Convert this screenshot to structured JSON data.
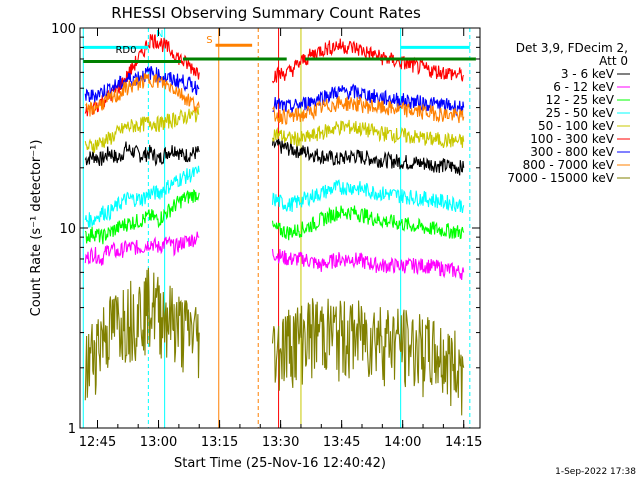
{
  "chart_data": {
    "type": "line",
    "title": "RHESSI Observing Summary Count Rates",
    "xlabel": "Start Time (25-Nov-16 12:40:42)",
    "ylabel": "Count Rate (s⁻¹ detector⁻¹)",
    "yscale": "log",
    "xlim_min": [
      40.7,
      139
    ],
    "ylim": [
      1,
      100
    ],
    "x_ticks": [
      {
        "value": 45,
        "label": "12:45"
      },
      {
        "value": 60,
        "label": "13:00"
      },
      {
        "value": 75,
        "label": "13:15"
      },
      {
        "value": 90,
        "label": "13:30"
      },
      {
        "value": 105,
        "label": "13:45"
      },
      {
        "value": 120,
        "label": "14:00"
      },
      {
        "value": 135,
        "label": "14:15"
      }
    ],
    "y_ticks": [
      {
        "value": 1,
        "label": "1"
      },
      {
        "value": 10,
        "label": "10"
      },
      {
        "value": 100,
        "label": "100"
      }
    ],
    "legend_header": [
      "Det 3,9, FDecim 2,",
      "Att 0"
    ],
    "series": [
      {
        "name": "3 - 6 keV",
        "color": "#000000",
        "values": [
          22,
          23,
          22,
          24,
          22,
          25,
          23,
          24,
          22,
          24,
          25,
          23,
          24,
          null,
          null,
          26,
          25,
          24,
          23,
          22,
          23,
          22,
          21,
          20
        ]
      },
      {
        "name": "6 - 12 keV",
        "color": "#ff00ff",
        "values": [
          7,
          7.5,
          7,
          8,
          7.5,
          8,
          8,
          8.5,
          8,
          8.5,
          8,
          8.5,
          9,
          null,
          null,
          7.5,
          7,
          7,
          6.5,
          7,
          7,
          6.5,
          6.5,
          6
        ]
      },
      {
        "name": "12 - 25 keV",
        "color": "#00ff00",
        "values": [
          9,
          9.5,
          9,
          9.5,
          10,
          10.5,
          11,
          11.5,
          11,
          12,
          13,
          14,
          15,
          null,
          null,
          10,
          9.5,
          10,
          11,
          12,
          12,
          11,
          10,
          9.5
        ]
      },
      {
        "name": "25 - 50 keV",
        "color": "#00ffff",
        "values": [
          11,
          11,
          12,
          12,
          13,
          14,
          14,
          15,
          15,
          16,
          17,
          18,
          19,
          null,
          null,
          14,
          13,
          14,
          15,
          16,
          16,
          15,
          14,
          13
        ]
      },
      {
        "name": "50 - 100 keV",
        "color": "#c8c800",
        "values": [
          25,
          26,
          27,
          28,
          30,
          32,
          33,
          34,
          33,
          34,
          35,
          36,
          37,
          null,
          null,
          30,
          28,
          28,
          30,
          32,
          32,
          30,
          28,
          27
        ]
      },
      {
        "name": "100 - 300 keV",
        "color": "#ff0000",
        "values": [
          38,
          40,
          43,
          46,
          50,
          56,
          75,
          88,
          86,
          80,
          74,
          68,
          60,
          null,
          null,
          58,
          60,
          70,
          78,
          82,
          80,
          72,
          62,
          58
        ]
      },
      {
        "name": "300 - 800 keV",
        "color": "#0000ff",
        "values": [
          45,
          46,
          48,
          50,
          52,
          55,
          58,
          60,
          58,
          56,
          55,
          54,
          50,
          null,
          null,
          42,
          40,
          42,
          45,
          48,
          48,
          45,
          42,
          40
        ]
      },
      {
        "name": "800 - 7000 keV",
        "color": "#ff8000",
        "values": [
          38,
          40,
          42,
          44,
          46,
          50,
          54,
          56,
          54,
          52,
          50,
          46,
          40,
          null,
          null,
          37,
          36,
          37,
          40,
          42,
          42,
          40,
          38,
          36
        ]
      },
      {
        "name": "7000 - 15000 keV",
        "color": "#808000",
        "values": [
          2,
          2.5,
          3,
          3.2,
          3.5,
          3.8,
          4,
          4.5,
          4,
          3.8,
          3.5,
          3.2,
          3,
          null,
          null,
          2.5,
          2.8,
          3,
          3.2,
          3,
          3,
          3,
          2.5,
          2
        ]
      }
    ],
    "series_x": [
      42,
      44,
      46,
      48,
      50,
      52,
      56,
      58,
      60,
      62,
      64,
      66,
      70,
      null,
      null,
      88,
      92,
      96,
      100,
      104,
      108,
      114,
      126,
      135
    ],
    "annotations": [
      {
        "text": "N",
        "x": 60.3
      },
      {
        "text": "S",
        "x": 72.5
      },
      {
        "text": "RD0",
        "x": 52
      }
    ],
    "green_bar_label": "RD0",
    "vertical_markers": {
      "solid_cyan": [
        41.5,
        61.5,
        119.5
      ],
      "dashed_cyan": [
        57.5,
        136.5
      ],
      "orange_solid": [
        74.8
      ],
      "orange_dashed": [
        84.5
      ],
      "red_solid": [
        89.5
      ],
      "yellow_solid": [
        95
      ]
    }
  },
  "timestamp": "1-Sep-2022 17:38"
}
